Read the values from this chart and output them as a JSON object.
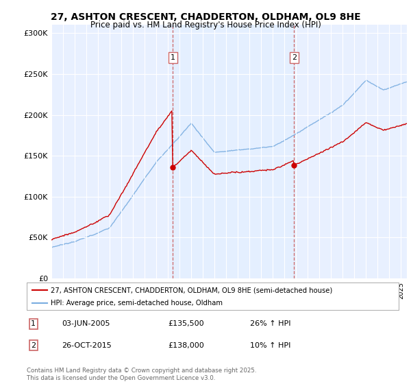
{
  "title1": "27, ASHTON CRESCENT, CHADDERTON, OLDHAM, OL9 8HE",
  "title2": "Price paid vs. HM Land Registry's House Price Index (HPI)",
  "legend_line1": "27, ASHTON CRESCENT, CHADDERTON, OLDHAM, OL9 8HE (semi-detached house)",
  "legend_line2": "HPI: Average price, semi-detached house, Oldham",
  "transaction1_date": "03-JUN-2005",
  "transaction1_price": "£135,500",
  "transaction1_hpi": "26% ↑ HPI",
  "transaction2_date": "26-OCT-2015",
  "transaction2_price": "£138,000",
  "transaction2_hpi": "10% ↑ HPI",
  "copyright": "Contains HM Land Registry data © Crown copyright and database right 2025.\nThis data is licensed under the Open Government Licence v3.0.",
  "red_color": "#cc0000",
  "blue_color": "#7aade0",
  "dashed_red": "#cc6666",
  "shade_color": "#ddeeff",
  "ylim_min": 0,
  "ylim_max": 310000,
  "yticks": [
    0,
    50000,
    100000,
    150000,
    200000,
    250000,
    300000
  ],
  "ytick_labels": [
    "£0",
    "£50K",
    "£100K",
    "£150K",
    "£200K",
    "£250K",
    "£300K"
  ],
  "year_start": 1995,
  "year_end": 2025,
  "vline1_year": 2005.42,
  "vline2_year": 2015.82,
  "background_color": "#e8f0ff"
}
